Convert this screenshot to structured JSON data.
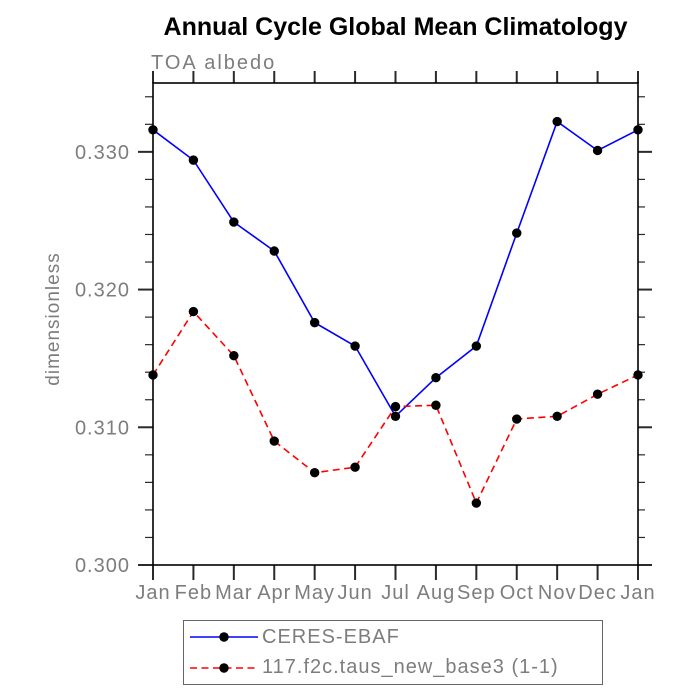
{
  "title": "Annual Cycle Global Mean Climatology",
  "subtitle": "TOA albedo",
  "colors": {
    "series1": "#0000ff",
    "series2": "#ff0000",
    "marker": "#000000",
    "axis": "#000000",
    "tick": "#2a2a2a",
    "gray_text": "#7d7d7d",
    "legend_border": "#666666"
  },
  "chart_data": {
    "type": "line",
    "title": "Annual Cycle Global Mean Climatology",
    "subtitle": "TOA albedo",
    "xlabel": "",
    "ylabel": "dimensionless",
    "categories": [
      "Jan",
      "Feb",
      "Mar",
      "Apr",
      "May",
      "Jun",
      "Jul",
      "Aug",
      "Sep",
      "Oct",
      "Nov",
      "Dec",
      "Jan"
    ],
    "series": [
      {
        "name": "CERES-EBAF",
        "color": "#0000ff",
        "line_style": "solid",
        "marker": "black-dot",
        "values": [
          0.3316,
          0.3294,
          0.3249,
          0.3228,
          0.3176,
          0.3159,
          0.3108,
          0.3136,
          0.3159,
          0.3241,
          0.3322,
          0.3301,
          0.3316
        ]
      },
      {
        "name": "117.f2c.taus_new_base3 (1-1)",
        "color": "#ff0000",
        "line_style": "dashed",
        "marker": "black-dot",
        "values": [
          0.3138,
          0.3184,
          0.3152,
          0.309,
          0.3067,
          0.3071,
          0.3115,
          0.3116,
          0.3045,
          0.3106,
          0.3108,
          0.3124,
          0.3138
        ]
      }
    ],
    "ylim": [
      0.3,
      0.335
    ],
    "yticks_major": [
      0.3,
      0.31,
      0.32,
      0.33
    ],
    "ytick_labels": [
      "0.300",
      "0.310",
      "0.320",
      "0.330"
    ],
    "ytick_minor_step": 0.002,
    "grid": false,
    "legend_position": "bottom"
  }
}
